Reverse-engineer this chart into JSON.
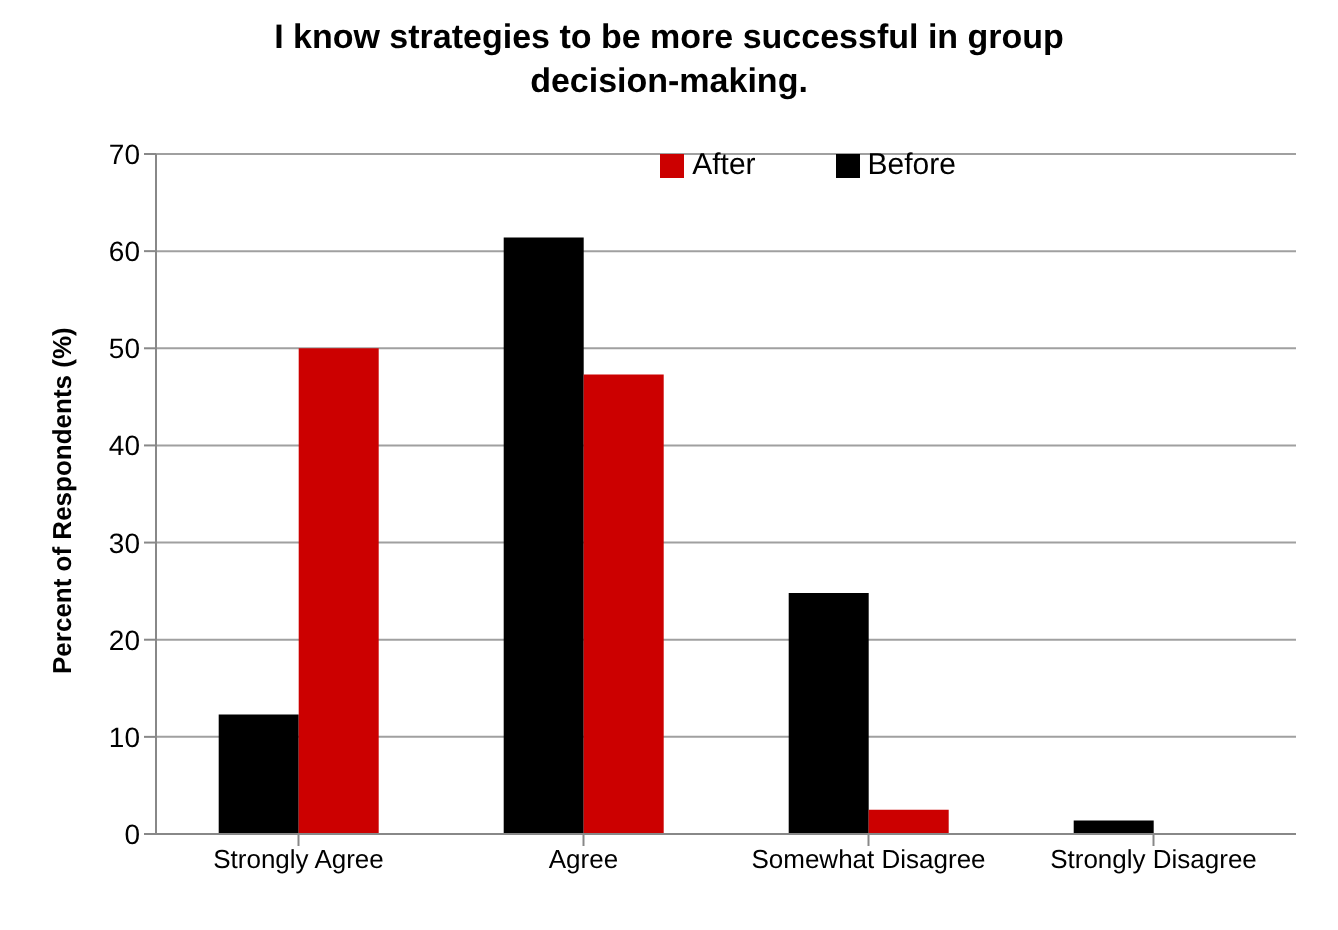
{
  "chart_data": {
    "type": "bar",
    "title": "I know strategies to be more successful in group decision-making.",
    "ylabel": "Percent of Respondents (%)",
    "categories": [
      "Strongly Agree",
      "Agree",
      "Somewhat Disagree",
      "Strongly Disagree"
    ],
    "series": [
      {
        "name": "Before",
        "color": "#000000",
        "values": [
          12.3,
          61.4,
          24.8,
          1.4
        ]
      },
      {
        "name": "After",
        "color": "#cc0000",
        "values": [
          50,
          47.3,
          2.5,
          0
        ]
      }
    ],
    "ylim": [
      0,
      70
    ],
    "yticks": [
      0,
      10,
      20,
      30,
      40,
      50,
      60,
      70
    ],
    "grid": "y",
    "legend": "top right"
  }
}
